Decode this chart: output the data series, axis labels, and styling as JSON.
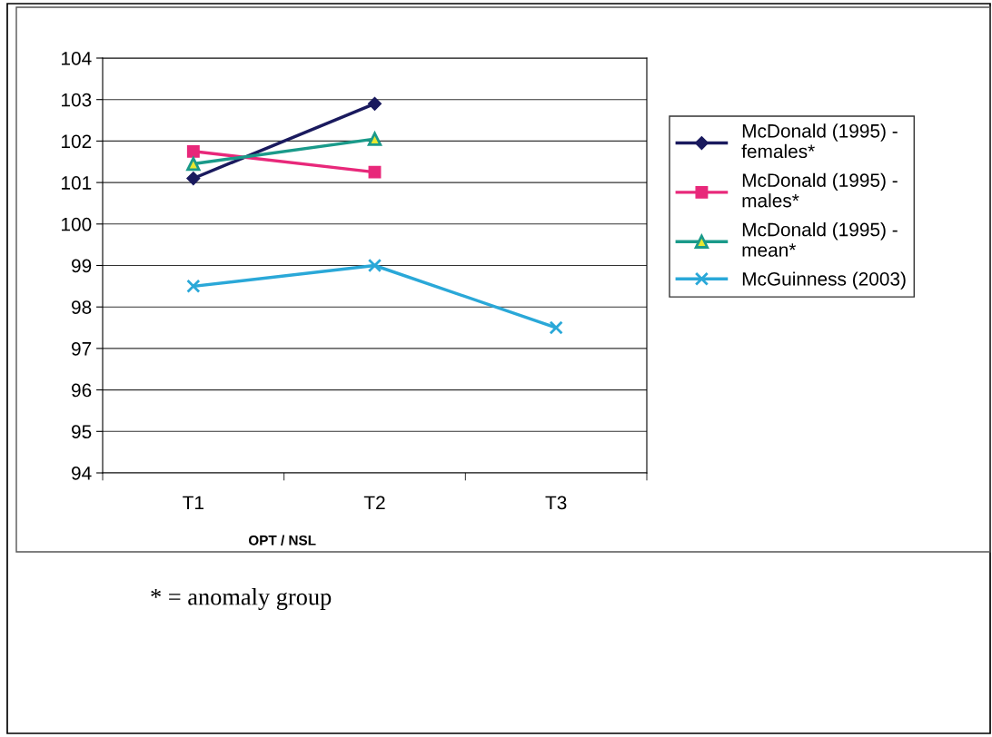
{
  "chart_data": {
    "type": "line",
    "xlabel": "OPT / NSL",
    "categories": [
      "T1",
      "T2",
      "T3"
    ],
    "series": [
      {
        "name": "McDonald (1995) - females*",
        "color": "#1a1a5e",
        "marker": "diamond",
        "values": [
          101.1,
          102.9,
          null
        ]
      },
      {
        "name": "McDonald (1995) - males*",
        "color": "#e8287a",
        "marker": "square",
        "values": [
          101.75,
          101.25,
          null
        ]
      },
      {
        "name": "McDonald (1995) - mean*",
        "color": "#1a9a8a",
        "marker": "triangle",
        "values": [
          101.45,
          102.05,
          null
        ]
      },
      {
        "name": "McGuinness (2003)",
        "color": "#2aa8d8",
        "marker": "cross",
        "values": [
          98.5,
          99.0,
          97.5
        ]
      }
    ],
    "ylim": [
      94,
      104
    ],
    "yticks": [
      94,
      95,
      96,
      97,
      98,
      99,
      100,
      101,
      102,
      103,
      104
    ],
    "grid": "y",
    "legend": "right",
    "line_style": "solid",
    "annotations": [
      "* = anomaly group"
    ]
  }
}
